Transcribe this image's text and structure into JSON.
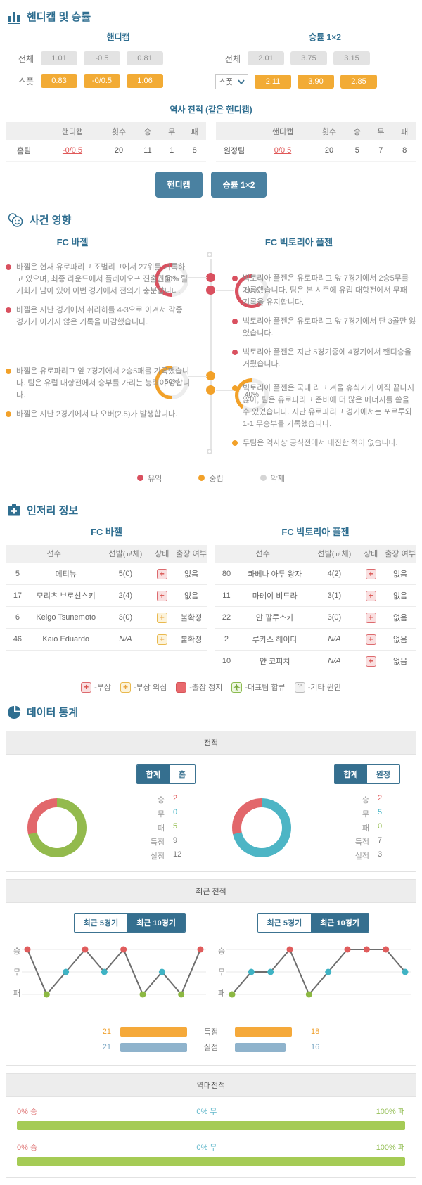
{
  "colors": {
    "win": "#e2676b",
    "draw": "#4db5c5",
    "loss": "#93ba4d",
    "win_dot": "#e05c5c",
    "draw_dot": "#3fb3c4",
    "loss_dot": "#8cb842",
    "h2h_win": "#e07a7a",
    "h2h_draw": "#62b8cb",
    "h2h_loss": "#a5cb55"
  },
  "odds": {
    "title": "핸디캡 및 승률",
    "handicap": {
      "label": "핸디캡",
      "rows": [
        {
          "label": "전체",
          "values": [
            "1.01",
            "-0.5",
            "0.81"
          ]
        },
        {
          "label": "스폿",
          "values": [
            "0.83",
            "-0/0.5",
            "1.06"
          ]
        }
      ]
    },
    "winrate": {
      "label": "승률 1×2",
      "rows": [
        {
          "label": "전체",
          "values": [
            "2.01",
            "3.75",
            "3.15"
          ]
        },
        {
          "label": "스폿",
          "values": [
            "2.11",
            "3.90",
            "2.85"
          ]
        }
      ]
    },
    "history": {
      "title": "역사 전적 (같은 핸디캡)",
      "headers": [
        "핸디캡",
        "횟수",
        "승",
        "무",
        "패"
      ],
      "rows": [
        {
          "team": "홈팀",
          "handicap": "-0/0.5",
          "count": "20",
          "win": "11",
          "draw": "1",
          "loss": "8"
        },
        {
          "team": "원정팀",
          "handicap": "0/0.5",
          "count": "20",
          "win": "5",
          "draw": "7",
          "loss": "8"
        }
      ]
    },
    "buttons": [
      "핸디캡",
      "승률 1×2"
    ]
  },
  "events": {
    "title": "사건 영향",
    "home_team": "FC 바젤",
    "away_team": "FC 빅토리아 플젠",
    "home_positive": [
      "바젤은 현재 유로파리그 조별리그에서 27위를 기록하고 있으며, 최종 라운드에서 플레이오프 진출권을 노릴 기회가 남아 있어 이번 경기에서 전의가 충분합니다.",
      "바젤은 지난 경기에서 취리히를 4-3으로 이겨서 각종 경기가 이기지 않은 기록을 마감했습니다."
    ],
    "away_positive": [
      "빅토리아 플젠은 유로파리그 앞 7경기에서 2승5무를 기록했습니다. 팀은 본 시즌에 유럽 대항전에서 무패 기록을 유지합니다.",
      "빅토리아 플젠은 유로파리그 앞 7경기에서 단 3골만 잃었습니다.",
      "빅토리아 플젠은 지난 5경기중에 4경기에서 핸디승을 거뒀습니다."
    ],
    "home_neutral": [
      "바젤은 유로파리그 앞 7경기에서 2승5패를 기록했습니다. 팀은 유럽 대항전에서 승부를 가리는 능력이 강합니다.",
      "바젤은 지난 2경기에서 다 오버(2.5)가 발생합니다."
    ],
    "away_neutral": [
      "빅토리아 플젠은 국내 리그 겨울 휴식기가 아직 끝나지 않아, 팀은 유로파리그 준비에 더 많은 메너지를 쏟을 수 있었습니다. 지난 유로파리그 경기에서는 포르투와 1-1 무승부를 기록했습니다.",
      "두팀은 역사상 공식전에서 대진한 적이 없습니다."
    ],
    "gauges": {
      "home_pos": {
        "percent": 50,
        "color": "#d9505f"
      },
      "away_pos": {
        "percent": 60,
        "color": "#d9505f"
      },
      "home_neu": {
        "percent": 50,
        "color": "#f2a129"
      },
      "away_neu": {
        "percent": 40,
        "color": "#f2a129"
      }
    },
    "legend": [
      {
        "label": "유익"
      },
      {
        "label": "중립"
      },
      {
        "label": "악재"
      }
    ]
  },
  "injury": {
    "title": "인저리 정보",
    "headers": [
      "선수",
      "선발(교체)",
      "상태",
      "출장 여부"
    ],
    "home": {
      "team": "FC 바젤",
      "rows": [
        {
          "num": "5",
          "name": "메티뉴",
          "starts": "5(0)",
          "status": "injury",
          "play": "없음"
        },
        {
          "num": "17",
          "name": "모리츠 브로신스키",
          "starts": "2(4)",
          "status": "injury",
          "play": "없음"
        },
        {
          "num": "6",
          "name": "Keigo Tsunemoto",
          "starts": "3(0)",
          "status": "doubt",
          "play": "불확정"
        },
        {
          "num": "46",
          "name": "Kaio Eduardo",
          "starts": "N/A",
          "status": "doubt",
          "play": "불확정"
        }
      ]
    },
    "away": {
      "team": "FC 빅토리아 플젠",
      "rows": [
        {
          "num": "80",
          "name": "콰베나 아두 왕자",
          "starts": "4(2)",
          "status": "injury",
          "play": "없음"
        },
        {
          "num": "11",
          "name": "마테이 비드라",
          "starts": "3(1)",
          "status": "injury",
          "play": "없음"
        },
        {
          "num": "22",
          "name": "얀 팔루스카",
          "starts": "3(0)",
          "status": "injury",
          "play": "없음"
        },
        {
          "num": "2",
          "name": "루카스 헤이다",
          "starts": "N/A",
          "status": "injury",
          "play": "없음"
        },
        {
          "num": "10",
          "name": "얀 코피치",
          "starts": "N/A",
          "status": "injury",
          "play": "없음"
        }
      ]
    },
    "legend": [
      {
        "label": "-부상"
      },
      {
        "label": "-부상 의심"
      },
      {
        "label": "-출장 정지"
      },
      {
        "label": "-대표팀 합류"
      },
      {
        "label": "-기타 원인"
      }
    ]
  },
  "stats": {
    "title": "데이터 통계",
    "stat_labels": [
      "승",
      "무",
      "패",
      "득점",
      "실점"
    ],
    "records": {
      "header": "전적",
      "home": {
        "toggle": [
          "합계",
          "홈"
        ],
        "wins": 2,
        "draws": 0,
        "losses": 5,
        "values": [
          "2",
          "0",
          "5",
          "9",
          "12"
        ]
      },
      "away": {
        "toggle": [
          "합계",
          "원정"
        ],
        "wins": 2,
        "draws": 5,
        "losses": 0,
        "values": [
          "2",
          "5",
          "0",
          "7",
          "3"
        ]
      }
    },
    "recent": {
      "header": "최근 전적",
      "toggle": [
        "최근 5경기",
        "최근 10경기"
      ],
      "axis": [
        "승",
        "무",
        "패"
      ],
      "home_results": [
        "승",
        "패",
        "무",
        "승",
        "무",
        "승",
        "패",
        "무",
        "패",
        "승"
      ],
      "away_results": [
        "패",
        "무",
        "무",
        "승",
        "패",
        "무",
        "승",
        "승",
        "승",
        "무"
      ],
      "bar_max": 21,
      "goals": {
        "label": "득점",
        "home": 21,
        "away": 18
      },
      "conceded": {
        "label": "실점",
        "home": 21,
        "away": 16
      }
    },
    "h2h": {
      "header": "역대전적",
      "rows": [
        {
          "win_label": "0% 승",
          "draw_label": "0% 무",
          "loss_label": "100% 패",
          "win": 0,
          "draw": 0,
          "loss": 100
        },
        {
          "win_label": "0% 승",
          "draw_label": "0% 무",
          "loss_label": "100% 패",
          "win": 0,
          "draw": 0,
          "loss": 100
        }
      ]
    },
    "chart_data": [
      {
        "type": "pie",
        "title": "전적 홈팀",
        "labels": [
          "승",
          "무",
          "패"
        ],
        "values": [
          2,
          0,
          5
        ],
        "extra": {
          "득점": 9,
          "실점": 12
        }
      },
      {
        "type": "pie",
        "title": "전적 원정팀",
        "labels": [
          "승",
          "무",
          "패"
        ],
        "values": [
          2,
          5,
          0
        ],
        "extra": {
          "득점": 7,
          "실점": 3
        }
      },
      {
        "type": "line",
        "title": "최근 10경기 홈팀",
        "y_categories": [
          "승",
          "무",
          "패"
        ],
        "values": [
          "승",
          "패",
          "무",
          "승",
          "무",
          "승",
          "패",
          "무",
          "패",
          "승"
        ]
      },
      {
        "type": "line",
        "title": "최근 10경기 원정팀",
        "y_categories": [
          "승",
          "무",
          "패"
        ],
        "values": [
          "패",
          "무",
          "무",
          "승",
          "패",
          "무",
          "승",
          "승",
          "승",
          "무"
        ]
      },
      {
        "type": "bar",
        "title": "최근 득점/실점",
        "categories": [
          "득점",
          "실점"
        ],
        "series": [
          {
            "name": "홈",
            "values": [
              21,
              21
            ]
          },
          {
            "name": "원정",
            "values": [
              18,
              16
            ]
          }
        ]
      },
      {
        "type": "bar",
        "title": "역대전적",
        "categories": [
          "승",
          "무",
          "패"
        ],
        "values": [
          0,
          0,
          100
        ]
      }
    ]
  }
}
